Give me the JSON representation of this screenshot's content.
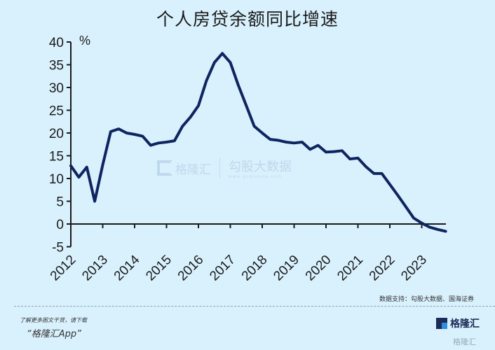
{
  "header": {
    "title": "个人房贷余额同比增速"
  },
  "source_note": "数据支持：勾股大数据、国海证券",
  "watermark": {
    "brand": "格隆汇",
    "brand2": "勾股大数据",
    "url": "www.gogudata.com"
  },
  "footer": {
    "promo_line1": "了解更多图文干货，请下载",
    "promo_line2": "“格隆汇App”",
    "logo_text": "格隆汇",
    "logo_sub": "www.gelonghui.com",
    "logo2_text": "格隆汇"
  },
  "colors": {
    "background": "#d9f1fd",
    "line": "#0f2560",
    "axis": "#1a1a1a"
  },
  "chart_data": {
    "type": "line",
    "title": "个人房贷余额同比增速",
    "xlabel": "",
    "ylabel": "%",
    "ylim": [
      -5,
      40
    ],
    "yticks": [
      -5,
      0,
      5,
      10,
      15,
      20,
      25,
      30,
      35,
      40
    ],
    "xticks": [
      "2012",
      "2013",
      "2014",
      "2015",
      "2016",
      "2017",
      "2018",
      "2019",
      "2020",
      "2021",
      "2022",
      "2023"
    ],
    "grid": false,
    "legend": null,
    "series": [
      {
        "name": "个人房贷余额同比增速",
        "x": [
          2012.0,
          2012.25,
          2012.5,
          2012.75,
          2013.0,
          2013.25,
          2013.5,
          2013.75,
          2014.0,
          2014.25,
          2014.5,
          2014.75,
          2015.0,
          2015.25,
          2015.5,
          2015.75,
          2016.0,
          2016.25,
          2016.5,
          2016.75,
          2017.0,
          2017.25,
          2017.5,
          2017.75,
          2018.0,
          2018.25,
          2018.5,
          2018.75,
          2019.0,
          2019.25,
          2019.5,
          2019.75,
          2020.0,
          2020.25,
          2020.5,
          2020.75,
          2021.0,
          2021.25,
          2021.5,
          2021.75,
          2022.0,
          2022.25,
          2022.5,
          2022.75,
          2023.0,
          2023.25,
          2023.5,
          2023.75
        ],
        "values": [
          12.8,
          10.3,
          12.5,
          5.0,
          13.0,
          20.3,
          20.9,
          20.0,
          19.7,
          19.3,
          17.3,
          17.8,
          18.0,
          18.3,
          21.5,
          23.5,
          26.0,
          31.5,
          35.5,
          37.5,
          35.5,
          30.5,
          26.0,
          21.5,
          20.0,
          18.6,
          18.4,
          18.0,
          17.8,
          18.0,
          16.4,
          17.3,
          15.8,
          15.9,
          16.1,
          14.3,
          14.5,
          12.6,
          11.1,
          11.1,
          8.7,
          6.3,
          3.8,
          1.3,
          0.2,
          -0.7,
          -1.2,
          -1.6
        ]
      }
    ]
  }
}
